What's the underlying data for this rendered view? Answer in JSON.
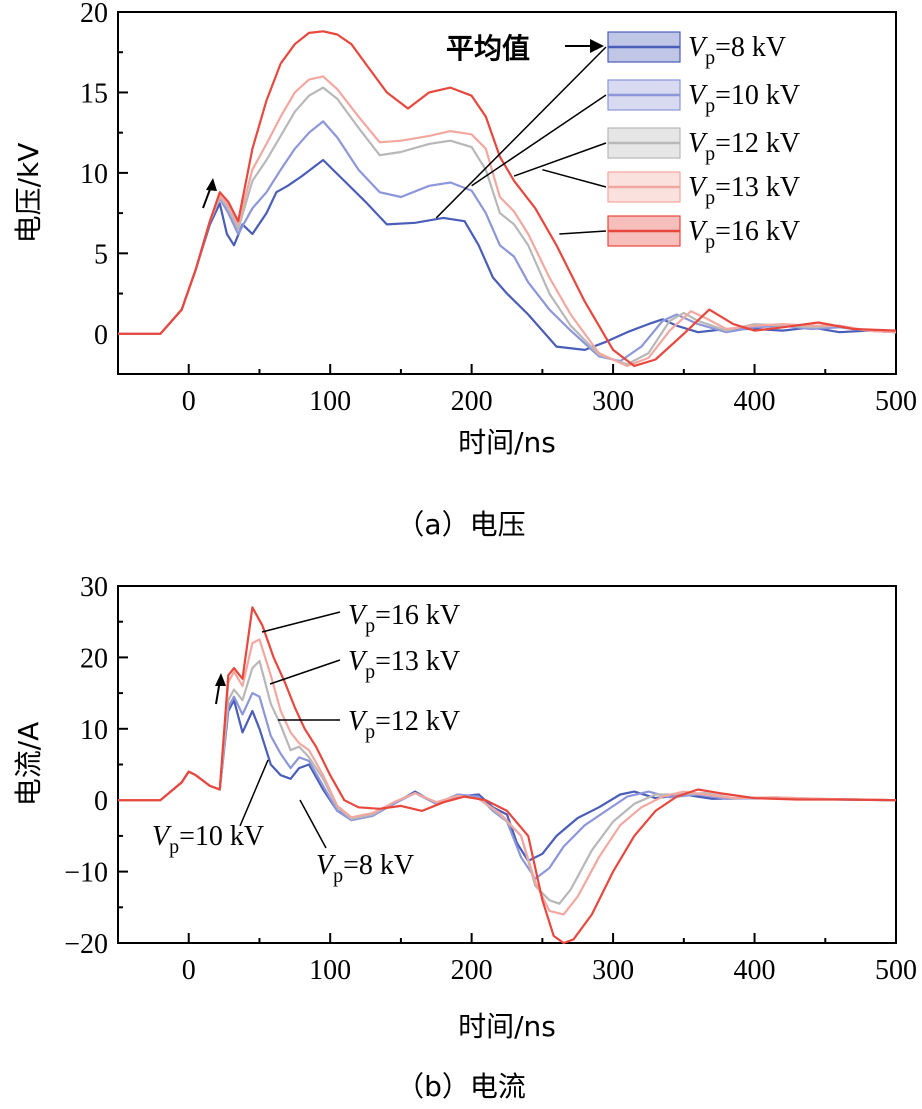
{
  "chart_data": [
    {
      "type": "line",
      "title": "",
      "caption": "（a）电压",
      "xlabel": "时间/ns",
      "ylabel": "电压/kV",
      "xlim": [
        -50,
        500
      ],
      "ylim": [
        -2.5,
        20
      ],
      "xticks": [
        "0",
        "100",
        "200",
        "300",
        "400",
        "500"
      ],
      "yticks": [
        "0",
        "5",
        "10",
        "15",
        "20"
      ],
      "legend_placement": "top-right",
      "legend_note": "平均值",
      "series": [
        {
          "name": "Vp=8 kV",
          "name_parts": [
            "V",
            "p",
            "=8 kV"
          ],
          "color": "#4a5db8",
          "x": [
            -50,
            -20,
            -5,
            5,
            15,
            22,
            27,
            32,
            38,
            45,
            55,
            62,
            70,
            80,
            95,
            110,
            125,
            140,
            160,
            180,
            195,
            205,
            215,
            225,
            240,
            260,
            280,
            295,
            310,
            325,
            335,
            345,
            360,
            380,
            400,
            420,
            440,
            460,
            480,
            500
          ],
          "y": [
            0,
            0,
            1.5,
            4,
            6.8,
            8.1,
            6.2,
            5.5,
            6.8,
            6.2,
            7.5,
            8.8,
            9.2,
            9.8,
            10.8,
            9.5,
            8.2,
            6.8,
            6.9,
            7.2,
            7.0,
            5.5,
            3.5,
            2.5,
            1.2,
            -0.8,
            -1.0,
            -0.5,
            0.1,
            0.6,
            0.9,
            0.5,
            0.1,
            0.3,
            0.3,
            0.2,
            0.4,
            0.1,
            0.2,
            0.1
          ]
        },
        {
          "name": "Vp=10 kV",
          "name_parts": [
            "V",
            "p",
            "=10 kV"
          ],
          "color": "#8d96d8",
          "x": [
            -50,
            -20,
            -5,
            5,
            15,
            22,
            28,
            35,
            45,
            55,
            65,
            75,
            85,
            95,
            105,
            120,
            135,
            150,
            170,
            185,
            200,
            210,
            220,
            230,
            240,
            255,
            270,
            290,
            305,
            320,
            335,
            345,
            360,
            380,
            400,
            420,
            440,
            460,
            480,
            500
          ],
          "y": [
            0,
            0,
            1.5,
            4,
            7,
            8.4,
            7.5,
            6.2,
            7.8,
            8.8,
            10.2,
            11.5,
            12.5,
            13.2,
            12.2,
            10.2,
            8.8,
            8.5,
            9.2,
            9.4,
            8.9,
            7.5,
            5.5,
            4.8,
            3.2,
            1.5,
            0.2,
            -1.4,
            -1.7,
            -0.8,
            0.8,
            1.2,
            0.6,
            0.1,
            0.4,
            0.5,
            0.3,
            0.4,
            0.2,
            0.1
          ]
        },
        {
          "name": "Vp=12 kV",
          "name_parts": [
            "V",
            "p",
            "=12 kV"
          ],
          "color": "#b8b8b8",
          "x": [
            -50,
            -20,
            -5,
            5,
            15,
            22,
            28,
            35,
            45,
            55,
            65,
            75,
            85,
            95,
            105,
            120,
            135,
            150,
            170,
            185,
            200,
            210,
            220,
            230,
            240,
            255,
            270,
            290,
            310,
            325,
            340,
            350,
            360,
            380,
            400,
            420,
            440,
            460,
            480,
            500
          ],
          "y": [
            0,
            0,
            1.5,
            4,
            7,
            8.5,
            7.8,
            6.5,
            9.5,
            10.8,
            12.3,
            13.8,
            14.8,
            15.3,
            14.6,
            12.8,
            11.1,
            11.3,
            11.8,
            12.0,
            11.6,
            10.2,
            7.5,
            6.8,
            5.5,
            2.5,
            0.5,
            -1.3,
            -1.9,
            -1.2,
            0.8,
            1.3,
            0.8,
            0.2,
            0.6,
            0.5,
            0.4,
            0.5,
            0.2,
            0.1
          ]
        },
        {
          "name": "Vp=13 kV",
          "name_parts": [
            "V",
            "p",
            "=13 kV"
          ],
          "color": "#f2a8a0",
          "x": [
            -50,
            -20,
            -5,
            5,
            15,
            22,
            28,
            35,
            45,
            55,
            65,
            75,
            85,
            95,
            105,
            120,
            135,
            150,
            170,
            185,
            200,
            210,
            220,
            230,
            240,
            255,
            270,
            290,
            310,
            325,
            340,
            355,
            365,
            380,
            400,
            420,
            440,
            460,
            480,
            500
          ],
          "y": [
            0,
            0,
            1.5,
            4,
            7,
            8.6,
            8.0,
            6.8,
            10.2,
            11.8,
            13.5,
            15.0,
            15.8,
            16.0,
            15.2,
            13.5,
            11.9,
            12.0,
            12.3,
            12.6,
            12.4,
            11.5,
            8.5,
            7.6,
            6.2,
            3.5,
            1.2,
            -1.2,
            -2.0,
            -1.5,
            0.2,
            1.4,
            1.0,
            0.3,
            0.5,
            0.6,
            0.5,
            0.5,
            0.2,
            0.1
          ]
        },
        {
          "name": "Vp=16 kV",
          "name_parts": [
            "V",
            "p",
            "=16 kV"
          ],
          "color": "#e8473d",
          "x": [
            -50,
            -20,
            -5,
            5,
            15,
            22,
            28,
            35,
            45,
            55,
            65,
            75,
            85,
            95,
            105,
            115,
            125,
            140,
            155,
            170,
            185,
            200,
            210,
            220,
            230,
            245,
            260,
            280,
            300,
            315,
            330,
            350,
            368,
            385,
            400,
            420,
            445,
            470,
            500
          ],
          "y": [
            0,
            0,
            1.5,
            4,
            7,
            8.8,
            8.2,
            7.0,
            11.5,
            14.5,
            16.8,
            18.0,
            18.7,
            18.8,
            18.6,
            18.0,
            16.8,
            15.0,
            14.0,
            15.0,
            15.3,
            14.8,
            13.5,
            11.0,
            9.5,
            7.8,
            5.5,
            2.0,
            -1.0,
            -2.0,
            -1.6,
            0.0,
            1.5,
            0.6,
            0.2,
            0.4,
            0.7,
            0.3,
            0.2
          ]
        }
      ]
    },
    {
      "type": "line",
      "title": "",
      "caption": "（b）电流",
      "xlabel": "时间/ns",
      "ylabel": "电流/A",
      "xlim": [
        -50,
        500
      ],
      "ylim": [
        -20,
        30
      ],
      "xticks": [
        "0",
        "100",
        "200",
        "300",
        "400",
        "500"
      ],
      "yticks": [
        "−20",
        "−10",
        "0",
        "10",
        "20",
        "30"
      ],
      "legend_placement": "none",
      "series": [
        {
          "name": "Vp=8 kV",
          "name_parts": [
            "V",
            "p",
            "=8 kV"
          ],
          "color": "#4a5db8",
          "x": [
            -50,
            -20,
            -5,
            0,
            5,
            15,
            22,
            28,
            32,
            38,
            45,
            50,
            58,
            65,
            72,
            78,
            85,
            95,
            105,
            115,
            130,
            145,
            160,
            175,
            190,
            205,
            215,
            225,
            232,
            240,
            250,
            260,
            275,
            290,
            305,
            315,
            330,
            350,
            370,
            400,
            430,
            460,
            500
          ],
          "y": [
            0,
            0,
            2.5,
            4.0,
            3.5,
            2.0,
            1.5,
            12.5,
            14.0,
            9.5,
            12.5,
            10.0,
            5.0,
            3.5,
            3.0,
            4.5,
            5.0,
            1.5,
            -1.5,
            -2.5,
            -2.0,
            -0.5,
            1.2,
            -0.5,
            0.5,
            0.8,
            -1.0,
            -2.0,
            -6.0,
            -8.5,
            -7.5,
            -5.0,
            -2.5,
            -1.0,
            0.8,
            1.2,
            0.3,
            0.8,
            0.2,
            0.3,
            0.2,
            0.1,
            0.0
          ]
        },
        {
          "name": "Vp=10 kV",
          "name_parts": [
            "V",
            "p",
            "=10 kV"
          ],
          "color": "#8d96d8",
          "x": [
            -50,
            -20,
            -5,
            0,
            5,
            15,
            22,
            28,
            32,
            38,
            45,
            50,
            58,
            65,
            72,
            78,
            85,
            95,
            105,
            115,
            130,
            145,
            160,
            175,
            190,
            205,
            215,
            225,
            235,
            245,
            255,
            265,
            280,
            295,
            310,
            325,
            340,
            360,
            380,
            410,
            440,
            470,
            500
          ],
          "y": [
            0,
            0,
            2.5,
            4.0,
            3.5,
            2.0,
            1.5,
            13.0,
            14.5,
            12.0,
            15.0,
            14.5,
            9.0,
            6.5,
            4.5,
            6.0,
            5.5,
            2.0,
            -1.5,
            -2.8,
            -2.2,
            -0.5,
            1.0,
            -0.5,
            0.8,
            0.5,
            -1.5,
            -3.0,
            -8.0,
            -11.0,
            -9.5,
            -6.5,
            -3.5,
            -1.5,
            0.5,
            1.2,
            0.4,
            0.8,
            0.2,
            0.3,
            0.2,
            0.1,
            0.0
          ]
        },
        {
          "name": "Vp=12 kV",
          "name_parts": [
            "V",
            "p",
            "=12 kV"
          ],
          "color": "#b8b8b8",
          "x": [
            -50,
            -20,
            -5,
            0,
            5,
            15,
            22,
            28,
            32,
            38,
            45,
            50,
            58,
            65,
            72,
            78,
            85,
            95,
            105,
            115,
            130,
            145,
            160,
            175,
            190,
            205,
            220,
            235,
            245,
            255,
            262,
            270,
            285,
            300,
            315,
            330,
            345,
            365,
            385,
            415,
            445,
            475,
            500
          ],
          "y": [
            0,
            0,
            2.5,
            4.0,
            3.5,
            2.0,
            1.5,
            14.0,
            15.5,
            14.0,
            18.5,
            19.5,
            13.5,
            10.5,
            7.0,
            7.5,
            6.0,
            3.0,
            -1.0,
            -2.6,
            -2.0,
            -0.3,
            1.0,
            -0.3,
            0.6,
            0.2,
            -2.0,
            -5.0,
            -12.0,
            -14.0,
            -14.5,
            -12.5,
            -7.0,
            -3.0,
            -0.5,
            0.8,
            0.8,
            1.0,
            0.3,
            0.4,
            0.2,
            0.1,
            0.0
          ]
        },
        {
          "name": "Vp=13 kV",
          "name_parts": [
            "V",
            "p",
            "=13 kV"
          ],
          "color": "#f2a8a0",
          "x": [
            -50,
            -20,
            -5,
            0,
            5,
            15,
            22,
            28,
            32,
            38,
            45,
            50,
            58,
            65,
            72,
            78,
            85,
            95,
            105,
            115,
            130,
            145,
            160,
            175,
            190,
            205,
            220,
            235,
            245,
            255,
            265,
            275,
            290,
            305,
            320,
            335,
            350,
            365,
            385,
            415,
            445,
            475,
            500
          ],
          "y": [
            0,
            0,
            2.5,
            4.0,
            3.5,
            2.0,
            1.5,
            16.5,
            18.0,
            16.0,
            22.0,
            22.5,
            17.5,
            12.5,
            9.5,
            8.0,
            7.0,
            3.5,
            -0.8,
            -2.4,
            -1.8,
            -0.3,
            1.0,
            -0.3,
            0.6,
            0.2,
            -1.8,
            -5.0,
            -11.5,
            -15.5,
            -16.0,
            -13.5,
            -8.0,
            -3.5,
            -1.0,
            0.5,
            1.2,
            0.8,
            0.3,
            0.4,
            0.2,
            0.1,
            0.0
          ]
        },
        {
          "name": "Vp=16 kV",
          "name_parts": [
            "V",
            "p",
            "=16 kV"
          ],
          "color": "#e8473d",
          "x": [
            -50,
            -20,
            -5,
            0,
            5,
            15,
            22,
            28,
            32,
            38,
            45,
            52,
            60,
            68,
            75,
            82,
            90,
            100,
            110,
            120,
            135,
            150,
            165,
            180,
            195,
            210,
            225,
            240,
            250,
            258,
            265,
            272,
            285,
            300,
            315,
            330,
            345,
            360,
            375,
            400,
            430,
            460,
            500
          ],
          "y": [
            0,
            0,
            2.5,
            4.0,
            3.5,
            2.0,
            1.5,
            17.5,
            18.5,
            17.0,
            27.0,
            24.5,
            20.0,
            16.5,
            13.0,
            10.0,
            7.5,
            3.5,
            0.0,
            -1.0,
            -1.2,
            -0.8,
            -1.5,
            -0.3,
            0.5,
            0.0,
            -1.5,
            -5.0,
            -14.0,
            -19.0,
            -20.0,
            -19.5,
            -16.0,
            -10.0,
            -5.0,
            -1.5,
            0.5,
            1.5,
            1.0,
            0.3,
            0.1,
            0.1,
            0.0
          ]
        }
      ],
      "annotations": [
        {
          "parts": [
            "V",
            "p",
            "=16 kV"
          ]
        },
        {
          "parts": [
            "V",
            "p",
            "=13 kV"
          ]
        },
        {
          "parts": [
            "V",
            "p",
            "=12 kV"
          ]
        },
        {
          "parts": [
            "V",
            "p",
            "=10 kV"
          ]
        },
        {
          "parts": [
            "V",
            "p",
            "=8 kV"
          ]
        }
      ]
    }
  ]
}
